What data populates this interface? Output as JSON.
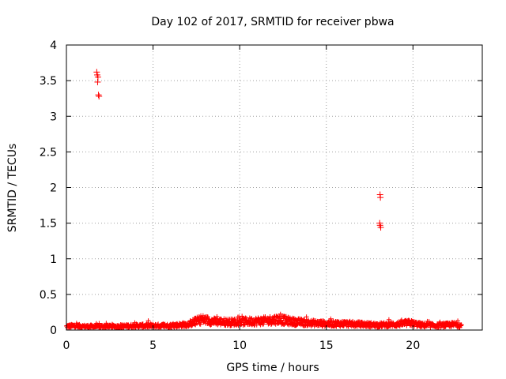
{
  "chart_data": {
    "type": "scatter",
    "title": "Day 102 of 2017, SRMTID for receiver pbwa",
    "xlabel": "GPS time / hours",
    "ylabel": "SRMTID / TECUs",
    "xlim": [
      0,
      24
    ],
    "ylim": [
      0,
      4
    ],
    "x_ticks": [
      0,
      5,
      10,
      15,
      20
    ],
    "x_tick_labels": [
      "0",
      "5",
      "10",
      "15",
      "20"
    ],
    "y_ticks": [
      0,
      0.5,
      1,
      1.5,
      2,
      2.5,
      3,
      3.5,
      4
    ],
    "y_tick_labels": [
      "0",
      "0.5",
      "1",
      "1.5",
      "2",
      "2.5",
      "3",
      "3.5",
      "4"
    ],
    "grid": true,
    "marker": "+",
    "marker_color": "#ff0000",
    "outliers": [
      {
        "x": 1.75,
        "y": 3.62
      },
      {
        "x": 1.78,
        "y": 3.58
      },
      {
        "x": 1.82,
        "y": 3.55
      },
      {
        "x": 1.8,
        "y": 3.48
      },
      {
        "x": 1.85,
        "y": 3.3
      },
      {
        "x": 1.88,
        "y": 3.28
      },
      {
        "x": 18.1,
        "y": 1.9
      },
      {
        "x": 18.12,
        "y": 1.86
      },
      {
        "x": 18.08,
        "y": 1.5
      },
      {
        "x": 18.1,
        "y": 1.47
      },
      {
        "x": 18.14,
        "y": 1.44
      }
    ],
    "baseline_profile": [
      {
        "x": 0.0,
        "y": 0.05
      },
      {
        "x": 0.5,
        "y": 0.06
      },
      {
        "x": 1.0,
        "y": 0.05
      },
      {
        "x": 2.0,
        "y": 0.05
      },
      {
        "x": 3.0,
        "y": 0.05
      },
      {
        "x": 4.0,
        "y": 0.06
      },
      {
        "x": 5.0,
        "y": 0.06
      },
      {
        "x": 6.0,
        "y": 0.06
      },
      {
        "x": 7.0,
        "y": 0.08
      },
      {
        "x": 7.8,
        "y": 0.15
      },
      {
        "x": 8.5,
        "y": 0.12
      },
      {
        "x": 9.5,
        "y": 0.11
      },
      {
        "x": 10.5,
        "y": 0.12
      },
      {
        "x": 11.5,
        "y": 0.13
      },
      {
        "x": 12.2,
        "y": 0.15
      },
      {
        "x": 13.0,
        "y": 0.12
      },
      {
        "x": 14.0,
        "y": 0.1
      },
      {
        "x": 15.0,
        "y": 0.09
      },
      {
        "x": 16.0,
        "y": 0.09
      },
      {
        "x": 17.0,
        "y": 0.08
      },
      {
        "x": 18.0,
        "y": 0.07
      },
      {
        "x": 19.0,
        "y": 0.08
      },
      {
        "x": 19.8,
        "y": 0.1
      },
      {
        "x": 20.5,
        "y": 0.07
      },
      {
        "x": 21.5,
        "y": 0.06
      },
      {
        "x": 22.4,
        "y": 0.08
      },
      {
        "x": 22.8,
        "y": 0.06
      }
    ],
    "baseline_x_range": [
      0,
      22.8
    ]
  }
}
